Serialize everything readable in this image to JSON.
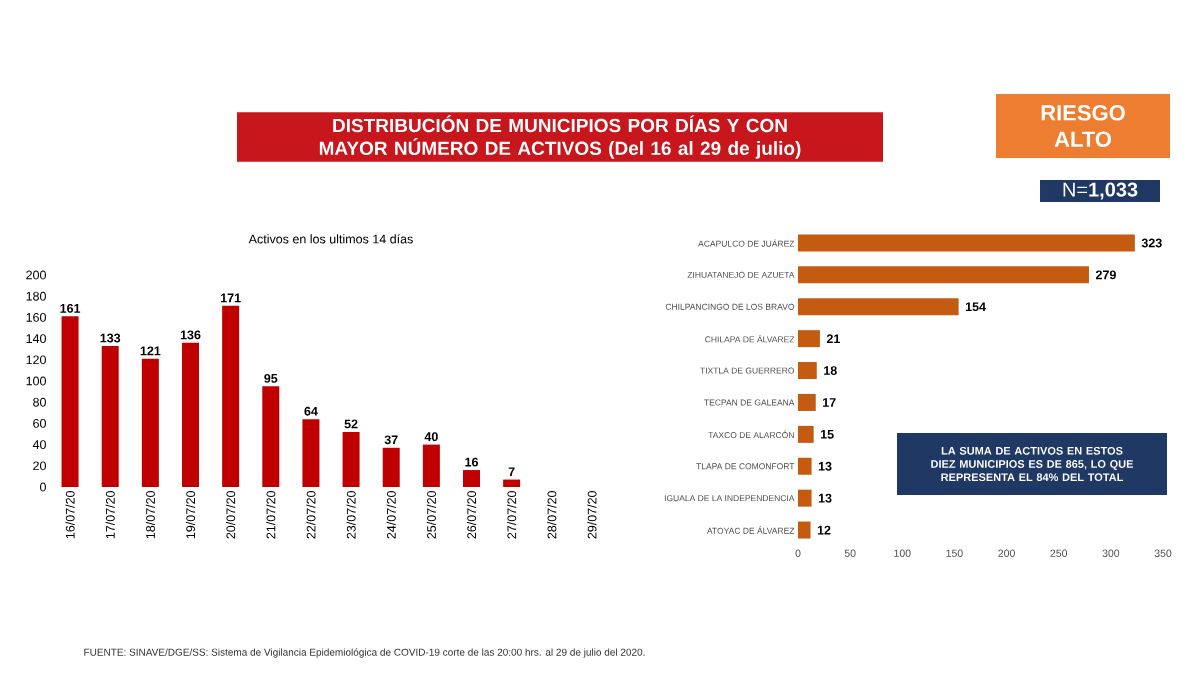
{
  "chart_data": [
    {
      "type": "other",
      "title": "DISTRIBUCIÓN DE MUNICIPIOS POR DÍAS Y CON MAYOR NÚMERO DE ACTIVOS (Del 16 al 29 de julio)",
      "annotations": [
        "RIESGO ALTO",
        "N=**1,033**",
        "FUENTE: SINAVE/DGE/SS: Sistema de Vigilancia Epidemiológica de COVID-19 corte de las 20:00 hrs. al 29 de julio del 2020."
      ]
    },
    {
      "type": "bar",
      "title": "Activos en los ultimos 14 días",
      "categories": [
        "16/07/20",
        "17/07/20",
        "18/07/20",
        "19/07/20",
        "20/07/20",
        "21/07/20",
        "22/07/20",
        "23/07/20",
        "24/07/20",
        "25/07/20",
        "26/07/20",
        "27/07/20",
        "28/07/20",
        "29/07/20"
      ],
      "values": [
        161,
        133,
        121,
        136,
        171,
        95,
        64,
        52,
        37,
        40,
        16,
        7,
        null,
        null
      ],
      "color": "#c00000",
      "ylim": [
        0,
        200
      ],
      "yticks": [
        0,
        20,
        40,
        60,
        80,
        100,
        120,
        140,
        160,
        180,
        200
      ],
      "data_labels": true
    },
    {
      "type": "bar",
      "orientation": "horizontal",
      "categories": [
        "ACAPULCO DE JUÁREZ",
        "ZIHUATANEJO DE AZUETA",
        "CHILPANCINGO DE LOS BRAVO",
        "CHILAPA DE ÁLVAREZ",
        "TIXTLA DE GUERRERO",
        "TECPAN DE GALEANA",
        "TAXCO DE ALARCÓN",
        "TLAPA DE COMONFORT",
        "IGUALA DE LA INDEPENDENCIA",
        "ATOYAC DE ÁLVAREZ"
      ],
      "values": [
        323,
        279,
        154,
        21,
        18,
        17,
        15,
        13,
        13,
        12
      ],
      "color": "#c55a11",
      "xlim": [
        0,
        350
      ],
      "xticks": [
        0,
        50,
        100,
        150,
        200,
        250,
        300,
        350
      ],
      "data_labels": true,
      "annotations": [
        "LA SUMA DE ACTIVOS EN ESTOS DIEZ MUNICIPIOS ES DE 865, LO QUE REPRESENTA EL 84% DEL TOTAL"
      ]
    }
  ]
}
